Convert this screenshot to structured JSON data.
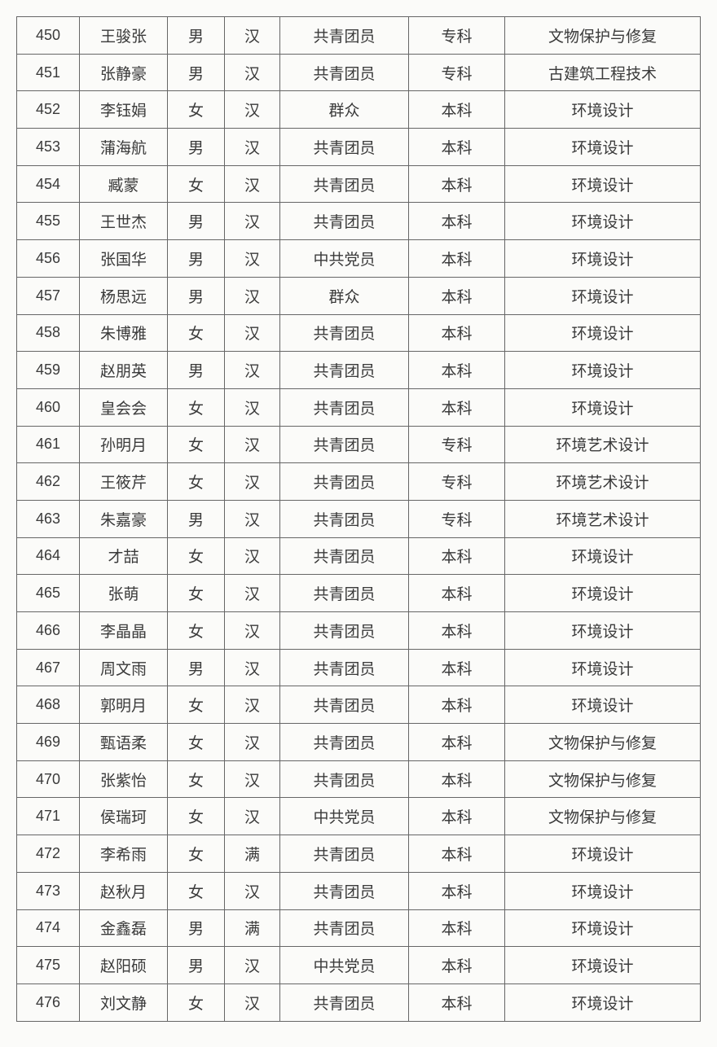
{
  "rows": [
    [
      "450",
      "王骏张",
      "男",
      "汉",
      "共青团员",
      "专科",
      "文物保护与修复"
    ],
    [
      "451",
      "张静豪",
      "男",
      "汉",
      "共青团员",
      "专科",
      "古建筑工程技术"
    ],
    [
      "452",
      "李钰娟",
      "女",
      "汉",
      "群众",
      "本科",
      "环境设计"
    ],
    [
      "453",
      "蒲海航",
      "男",
      "汉",
      "共青团员",
      "本科",
      "环境设计"
    ],
    [
      "454",
      "臧蒙",
      "女",
      "汉",
      "共青团员",
      "本科",
      "环境设计"
    ],
    [
      "455",
      "王世杰",
      "男",
      "汉",
      "共青团员",
      "本科",
      "环境设计"
    ],
    [
      "456",
      "张国华",
      "男",
      "汉",
      "中共党员",
      "本科",
      "环境设计"
    ],
    [
      "457",
      "杨思远",
      "男",
      "汉",
      "群众",
      "本科",
      "环境设计"
    ],
    [
      "458",
      "朱博雅",
      "女",
      "汉",
      "共青团员",
      "本科",
      "环境设计"
    ],
    [
      "459",
      "赵朋英",
      "男",
      "汉",
      "共青团员",
      "本科",
      "环境设计"
    ],
    [
      "460",
      "皇会会",
      "女",
      "汉",
      "共青团员",
      "本科",
      "环境设计"
    ],
    [
      "461",
      "孙明月",
      "女",
      "汉",
      "共青团员",
      "专科",
      "环境艺术设计"
    ],
    [
      "462",
      "王筱芹",
      "女",
      "汉",
      "共青团员",
      "专科",
      "环境艺术设计"
    ],
    [
      "463",
      "朱嘉豪",
      "男",
      "汉",
      "共青团员",
      "专科",
      "环境艺术设计"
    ],
    [
      "464",
      "才喆",
      "女",
      "汉",
      "共青团员",
      "本科",
      "环境设计"
    ],
    [
      "465",
      "张萌",
      "女",
      "汉",
      "共青团员",
      "本科",
      "环境设计"
    ],
    [
      "466",
      "李晶晶",
      "女",
      "汉",
      "共青团员",
      "本科",
      "环境设计"
    ],
    [
      "467",
      "周文雨",
      "男",
      "汉",
      "共青团员",
      "本科",
      "环境设计"
    ],
    [
      "468",
      "郭明月",
      "女",
      "汉",
      "共青团员",
      "本科",
      "环境设计"
    ],
    [
      "469",
      "甄语柔",
      "女",
      "汉",
      "共青团员",
      "本科",
      "文物保护与修复"
    ],
    [
      "470",
      "张紫怡",
      "女",
      "汉",
      "共青团员",
      "本科",
      "文物保护与修复"
    ],
    [
      "471",
      "侯瑞珂",
      "女",
      "汉",
      "中共党员",
      "本科",
      "文物保护与修复"
    ],
    [
      "472",
      "李希雨",
      "女",
      "满",
      "共青团员",
      "本科",
      "环境设计"
    ],
    [
      "473",
      "赵秋月",
      "女",
      "汉",
      "共青团员",
      "本科",
      "环境设计"
    ],
    [
      "474",
      "金鑫磊",
      "男",
      "满",
      "共青团员",
      "本科",
      "环境设计"
    ],
    [
      "475",
      "赵阳硕",
      "男",
      "汉",
      "中共党员",
      "本科",
      "环境设计"
    ],
    [
      "476",
      "刘文静",
      "女",
      "汉",
      "共青团员",
      "本科",
      "环境设计"
    ]
  ]
}
